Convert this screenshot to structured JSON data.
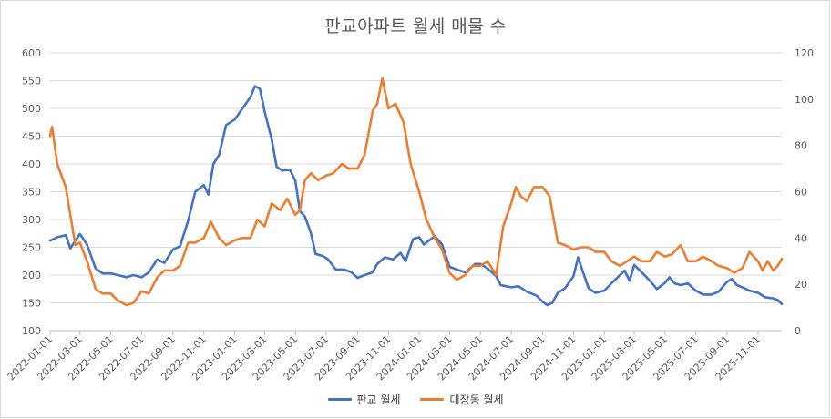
{
  "chart_data": {
    "type": "line",
    "title": "판교아파트 월세 매물 수",
    "x_ticks": [
      "2022-01-01",
      "2022-03-01",
      "2022-05-01",
      "2022-07-01",
      "2022-09-01",
      "2022-11-01",
      "2023-01-01",
      "2023-03-01",
      "2023-05-01",
      "2023-07-01",
      "2023-09-01",
      "2023-11-01",
      "2024-01-01",
      "2024-03-01",
      "2024-05-01",
      "2024-07-01",
      "2024-09-01",
      "2024-11-01",
      "2025-01-01",
      "2025-03-01",
      "2025-05-01",
      "2025-07-01",
      "2025-09-01",
      "2025-11-01"
    ],
    "x_range": [
      "2022-01-01",
      "2025-12-18"
    ],
    "y_left": {
      "range": [
        100,
        600
      ],
      "ticks": [
        100,
        150,
        200,
        250,
        300,
        350,
        400,
        450,
        500,
        550,
        600
      ]
    },
    "y_right": {
      "range": [
        0,
        120
      ],
      "ticks": [
        0,
        20,
        40,
        60,
        80,
        100,
        120
      ]
    },
    "grid": true,
    "legend_position": "bottom",
    "series": [
      {
        "name": "판교 월세",
        "axis": "left",
        "color": "#4472c4",
        "points": [
          [
            "2022-01-01",
            262
          ],
          [
            "2022-01-15",
            268
          ],
          [
            "2022-02-01",
            272
          ],
          [
            "2022-02-10",
            248
          ],
          [
            "2022-02-20",
            262
          ],
          [
            "2022-03-01",
            274
          ],
          [
            "2022-03-15",
            255
          ],
          [
            "2022-04-01",
            212
          ],
          [
            "2022-04-15",
            203
          ],
          [
            "2022-05-01",
            203
          ],
          [
            "2022-05-15",
            200
          ],
          [
            "2022-06-01",
            196
          ],
          [
            "2022-06-15",
            200
          ],
          [
            "2022-07-01",
            196
          ],
          [
            "2022-07-15",
            205
          ],
          [
            "2022-08-01",
            228
          ],
          [
            "2022-08-15",
            222
          ],
          [
            "2022-09-01",
            246
          ],
          [
            "2022-09-15",
            252
          ],
          [
            "2022-10-01",
            298
          ],
          [
            "2022-10-15",
            350
          ],
          [
            "2022-11-01",
            362
          ],
          [
            "2022-11-10",
            345
          ],
          [
            "2022-11-20",
            400
          ],
          [
            "2022-12-01",
            416
          ],
          [
            "2022-12-15",
            470
          ],
          [
            "2023-01-01",
            480
          ],
          [
            "2023-01-15",
            498
          ],
          [
            "2023-02-01",
            520
          ],
          [
            "2023-02-10",
            540
          ],
          [
            "2023-02-20",
            535
          ],
          [
            "2023-03-01",
            495
          ],
          [
            "2023-03-15",
            445
          ],
          [
            "2023-03-25",
            395
          ],
          [
            "2023-04-05",
            388
          ],
          [
            "2023-04-20",
            390
          ],
          [
            "2023-05-01",
            370
          ],
          [
            "2023-05-10",
            315
          ],
          [
            "2023-05-20",
            305
          ],
          [
            "2023-06-01",
            275
          ],
          [
            "2023-06-10",
            238
          ],
          [
            "2023-06-25",
            234
          ],
          [
            "2023-07-05",
            228
          ],
          [
            "2023-07-20",
            210
          ],
          [
            "2023-08-05",
            210
          ],
          [
            "2023-08-20",
            205
          ],
          [
            "2023-09-01",
            195
          ],
          [
            "2023-09-15",
            200
          ],
          [
            "2023-10-01",
            205
          ],
          [
            "2023-10-10",
            220
          ],
          [
            "2023-10-25",
            232
          ],
          [
            "2023-11-10",
            228
          ],
          [
            "2023-11-25",
            240
          ],
          [
            "2023-12-05",
            225
          ],
          [
            "2023-12-20",
            265
          ],
          [
            "2024-01-01",
            268
          ],
          [
            "2024-01-10",
            255
          ],
          [
            "2024-01-20",
            262
          ],
          [
            "2024-02-01",
            270
          ],
          [
            "2024-02-15",
            255
          ],
          [
            "2024-03-01",
            215
          ],
          [
            "2024-03-15",
            210
          ],
          [
            "2024-04-01",
            205
          ],
          [
            "2024-04-20",
            220
          ],
          [
            "2024-05-01",
            220
          ],
          [
            "2024-05-15",
            212
          ],
          [
            "2024-06-01",
            198
          ],
          [
            "2024-06-10",
            182
          ],
          [
            "2024-06-20",
            180
          ],
          [
            "2024-07-01",
            178
          ],
          [
            "2024-07-15",
            180
          ],
          [
            "2024-08-01",
            170
          ],
          [
            "2024-08-20",
            163
          ],
          [
            "2024-09-01",
            152
          ],
          [
            "2024-09-10",
            146
          ],
          [
            "2024-09-20",
            150
          ],
          [
            "2024-10-01",
            168
          ],
          [
            "2024-10-15",
            176
          ],
          [
            "2024-11-01",
            198
          ],
          [
            "2024-11-10",
            232
          ],
          [
            "2024-11-20",
            205
          ],
          [
            "2024-12-01",
            176
          ],
          [
            "2024-12-15",
            168
          ],
          [
            "2025-01-01",
            172
          ],
          [
            "2025-01-15",
            185
          ],
          [
            "2025-02-01",
            200
          ],
          [
            "2025-02-10",
            208
          ],
          [
            "2025-02-20",
            190
          ],
          [
            "2025-03-01",
            218
          ],
          [
            "2025-03-15",
            206
          ],
          [
            "2025-04-01",
            190
          ],
          [
            "2025-04-15",
            175
          ],
          [
            "2025-05-01",
            186
          ],
          [
            "2025-05-10",
            196
          ],
          [
            "2025-05-20",
            185
          ],
          [
            "2025-06-01",
            182
          ],
          [
            "2025-06-15",
            185
          ],
          [
            "2025-07-01",
            172
          ],
          [
            "2025-07-15",
            165
          ],
          [
            "2025-08-01",
            165
          ],
          [
            "2025-08-15",
            170
          ],
          [
            "2025-09-01",
            188
          ],
          [
            "2025-09-10",
            193
          ],
          [
            "2025-09-20",
            182
          ],
          [
            "2025-10-01",
            178
          ],
          [
            "2025-10-15",
            172
          ],
          [
            "2025-11-01",
            168
          ],
          [
            "2025-11-15",
            160
          ],
          [
            "2025-12-01",
            158
          ],
          [
            "2025-12-10",
            155
          ],
          [
            "2025-12-18",
            148
          ]
        ]
      },
      {
        "name": "대장동 월세",
        "axis": "right",
        "color": "#ed7d31",
        "points": [
          [
            "2022-01-01",
            84
          ],
          [
            "2022-01-05",
            88
          ],
          [
            "2022-01-15",
            72
          ],
          [
            "2022-02-01",
            62
          ],
          [
            "2022-02-10",
            50
          ],
          [
            "2022-02-20",
            37
          ],
          [
            "2022-03-01",
            38
          ],
          [
            "2022-03-15",
            30
          ],
          [
            "2022-04-01",
            18
          ],
          [
            "2022-04-15",
            16
          ],
          [
            "2022-05-01",
            16
          ],
          [
            "2022-05-15",
            13
          ],
          [
            "2022-06-01",
            11
          ],
          [
            "2022-06-15",
            12
          ],
          [
            "2022-07-01",
            17
          ],
          [
            "2022-07-15",
            16
          ],
          [
            "2022-08-01",
            23
          ],
          [
            "2022-08-15",
            26
          ],
          [
            "2022-09-01",
            26
          ],
          [
            "2022-09-15",
            28
          ],
          [
            "2022-10-01",
            38
          ],
          [
            "2022-10-15",
            38
          ],
          [
            "2022-11-01",
            40
          ],
          [
            "2022-11-15",
            47
          ],
          [
            "2022-12-01",
            40
          ],
          [
            "2022-12-15",
            37
          ],
          [
            "2023-01-01",
            39
          ],
          [
            "2023-01-15",
            40
          ],
          [
            "2023-02-01",
            40
          ],
          [
            "2023-02-15",
            48
          ],
          [
            "2023-03-01",
            45
          ],
          [
            "2023-03-15",
            55
          ],
          [
            "2023-04-01",
            52
          ],
          [
            "2023-04-15",
            57
          ],
          [
            "2023-05-01",
            50
          ],
          [
            "2023-05-10",
            52
          ],
          [
            "2023-05-20",
            65
          ],
          [
            "2023-06-01",
            68
          ],
          [
            "2023-06-15",
            65
          ],
          [
            "2023-07-01",
            67
          ],
          [
            "2023-07-15",
            68
          ],
          [
            "2023-08-01",
            72
          ],
          [
            "2023-08-15",
            70
          ],
          [
            "2023-09-01",
            70
          ],
          [
            "2023-09-15",
            76
          ],
          [
            "2023-10-01",
            95
          ],
          [
            "2023-10-10",
            98
          ],
          [
            "2023-10-20",
            109
          ],
          [
            "2023-11-01",
            96
          ],
          [
            "2023-11-15",
            98
          ],
          [
            "2023-12-01",
            90
          ],
          [
            "2023-12-15",
            72
          ],
          [
            "2024-01-01",
            60
          ],
          [
            "2024-01-15",
            48
          ],
          [
            "2024-02-01",
            40
          ],
          [
            "2024-02-15",
            35
          ],
          [
            "2024-03-01",
            25
          ],
          [
            "2024-03-15",
            22
          ],
          [
            "2024-04-01",
            24
          ],
          [
            "2024-04-15",
            28
          ],
          [
            "2024-05-01",
            28
          ],
          [
            "2024-05-15",
            30
          ],
          [
            "2024-06-01",
            24
          ],
          [
            "2024-06-15",
            45
          ],
          [
            "2024-07-01",
            55
          ],
          [
            "2024-07-10",
            62
          ],
          [
            "2024-07-20",
            58
          ],
          [
            "2024-08-01",
            56
          ],
          [
            "2024-08-15",
            62
          ],
          [
            "2024-09-01",
            62
          ],
          [
            "2024-09-15",
            58
          ],
          [
            "2024-10-01",
            38
          ],
          [
            "2024-10-15",
            37
          ],
          [
            "2024-11-01",
            35
          ],
          [
            "2024-11-15",
            36
          ],
          [
            "2024-12-01",
            36
          ],
          [
            "2024-12-15",
            34
          ],
          [
            "2025-01-01",
            34
          ],
          [
            "2025-01-15",
            30
          ],
          [
            "2025-02-01",
            28
          ],
          [
            "2025-02-15",
            30
          ],
          [
            "2025-03-01",
            32
          ],
          [
            "2025-03-15",
            30
          ],
          [
            "2025-04-01",
            30
          ],
          [
            "2025-04-15",
            34
          ],
          [
            "2025-05-01",
            32
          ],
          [
            "2025-05-15",
            33
          ],
          [
            "2025-06-01",
            37
          ],
          [
            "2025-06-15",
            30
          ],
          [
            "2025-07-01",
            30
          ],
          [
            "2025-07-15",
            32
          ],
          [
            "2025-08-01",
            30
          ],
          [
            "2025-08-15",
            28
          ],
          [
            "2025-09-01",
            27
          ],
          [
            "2025-09-15",
            25
          ],
          [
            "2025-10-01",
            27
          ],
          [
            "2025-10-15",
            34
          ],
          [
            "2025-11-01",
            30
          ],
          [
            "2025-11-10",
            26
          ],
          [
            "2025-11-20",
            30
          ],
          [
            "2025-12-01",
            26
          ],
          [
            "2025-12-10",
            28
          ],
          [
            "2025-12-18",
            31
          ]
        ]
      }
    ]
  }
}
